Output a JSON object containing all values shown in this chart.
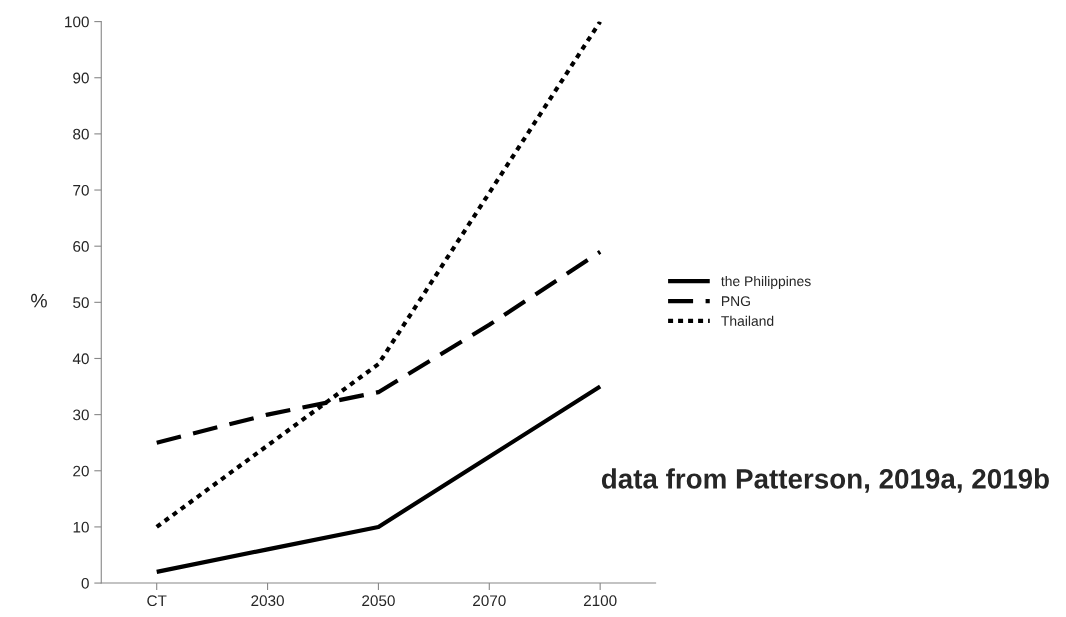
{
  "chart_data": {
    "type": "line",
    "ylabel": "%",
    "categories": [
      "CT",
      "2030",
      "2050",
      "2070",
      "2100"
    ],
    "series": [
      {
        "name": "the Philippines",
        "color": "#000000",
        "line_style": "solid",
        "values": [
          2,
          6,
          10,
          22.5,
          35
        ]
      },
      {
        "name": "PNG",
        "color": "#000000",
        "line_style": "dashed",
        "values": [
          25,
          30,
          34,
          46,
          59
        ]
      },
      {
        "name": "Thailand",
        "color": "#000000",
        "line_style": "dotted",
        "values": [
          10,
          24.5,
          39,
          69.5,
          100
        ]
      }
    ],
    "ylim": [
      0,
      100
    ],
    "yticks": [
      0,
      10,
      20,
      30,
      40,
      50,
      60,
      70,
      80,
      90,
      100
    ],
    "grid": false,
    "legend": "right",
    "marker": "none",
    "annotations": [
      "data from Patterson, 2019a, 2019b"
    ]
  }
}
